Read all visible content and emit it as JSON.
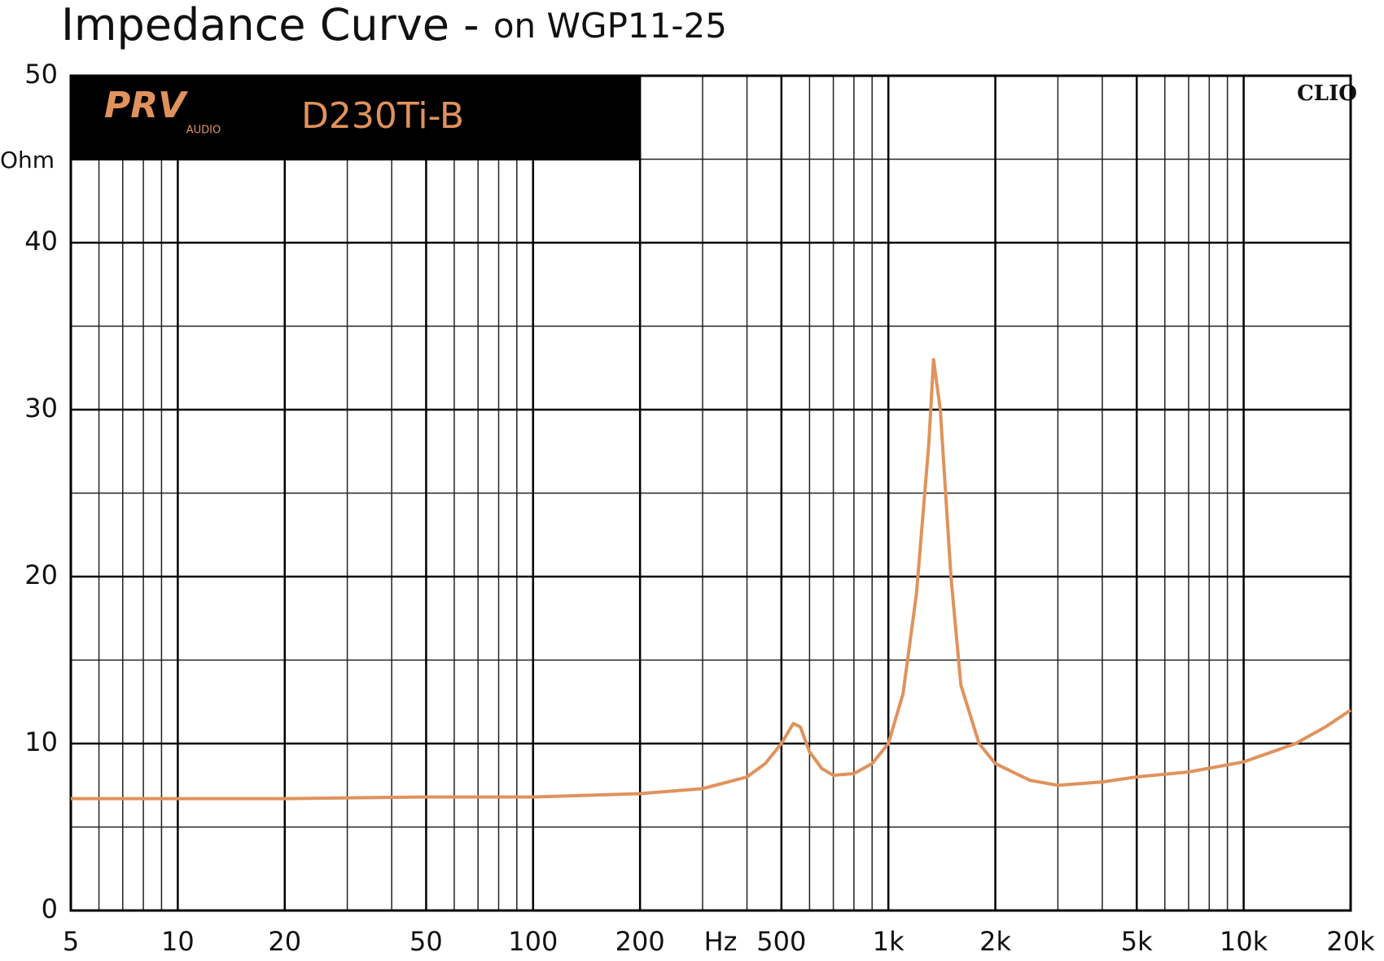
{
  "chart_data": {
    "type": "line",
    "title": "Impedance Curve -",
    "subtitle": "on WGP11-25",
    "x_label": "Hz",
    "y_label": "Ohm",
    "logo": {
      "brand": "PRV",
      "sub": "AUDIO",
      "model": "D230Ti-B"
    },
    "watermark": "CLIO",
    "xlog": true,
    "xlim": [
      5,
      20000
    ],
    "ylim": [
      0,
      50
    ],
    "xticks": [
      5,
      10,
      20,
      50,
      100,
      200,
      500,
      {
        "value": 1000,
        "label": "1k"
      },
      {
        "value": 2000,
        "label": "2k"
      },
      {
        "value": 5000,
        "label": "5k"
      },
      {
        "value": 10000,
        "label": "10k"
      },
      {
        "value": 20000,
        "label": "20k"
      }
    ],
    "yticks": [
      0,
      10,
      20,
      30,
      40,
      50
    ],
    "xgrid": [
      6,
      7,
      8,
      9,
      30,
      40,
      60,
      70,
      80,
      90,
      300,
      400,
      600,
      700,
      800,
      900,
      3000,
      4000,
      6000,
      7000,
      8000,
      9000
    ],
    "ygrid": [
      5,
      15,
      25,
      35,
      45
    ],
    "x": [
      5,
      10,
      20,
      50,
      100,
      200,
      300,
      400,
      450,
      500,
      540,
      565,
      600,
      650,
      700,
      800,
      900,
      1000,
      1100,
      1200,
      1300,
      1340,
      1400,
      1500,
      1600,
      1800,
      2000,
      2500,
      3000,
      4000,
      5000,
      7000,
      10000,
      14000,
      17000,
      20000
    ],
    "series": [
      {
        "color": "#e0925c",
        "values": [
          6.7,
          6.7,
          6.7,
          6.8,
          6.8,
          7.0,
          7.3,
          8.0,
          8.8,
          10.0,
          11.2,
          11.0,
          9.5,
          8.5,
          8.1,
          8.2,
          8.8,
          10.0,
          13.0,
          19.0,
          28.0,
          33.0,
          30.0,
          20.0,
          13.5,
          10.0,
          8.8,
          7.8,
          7.5,
          7.7,
          8.0,
          8.3,
          8.9,
          10.0,
          11.0,
          12.0
        ]
      }
    ]
  }
}
